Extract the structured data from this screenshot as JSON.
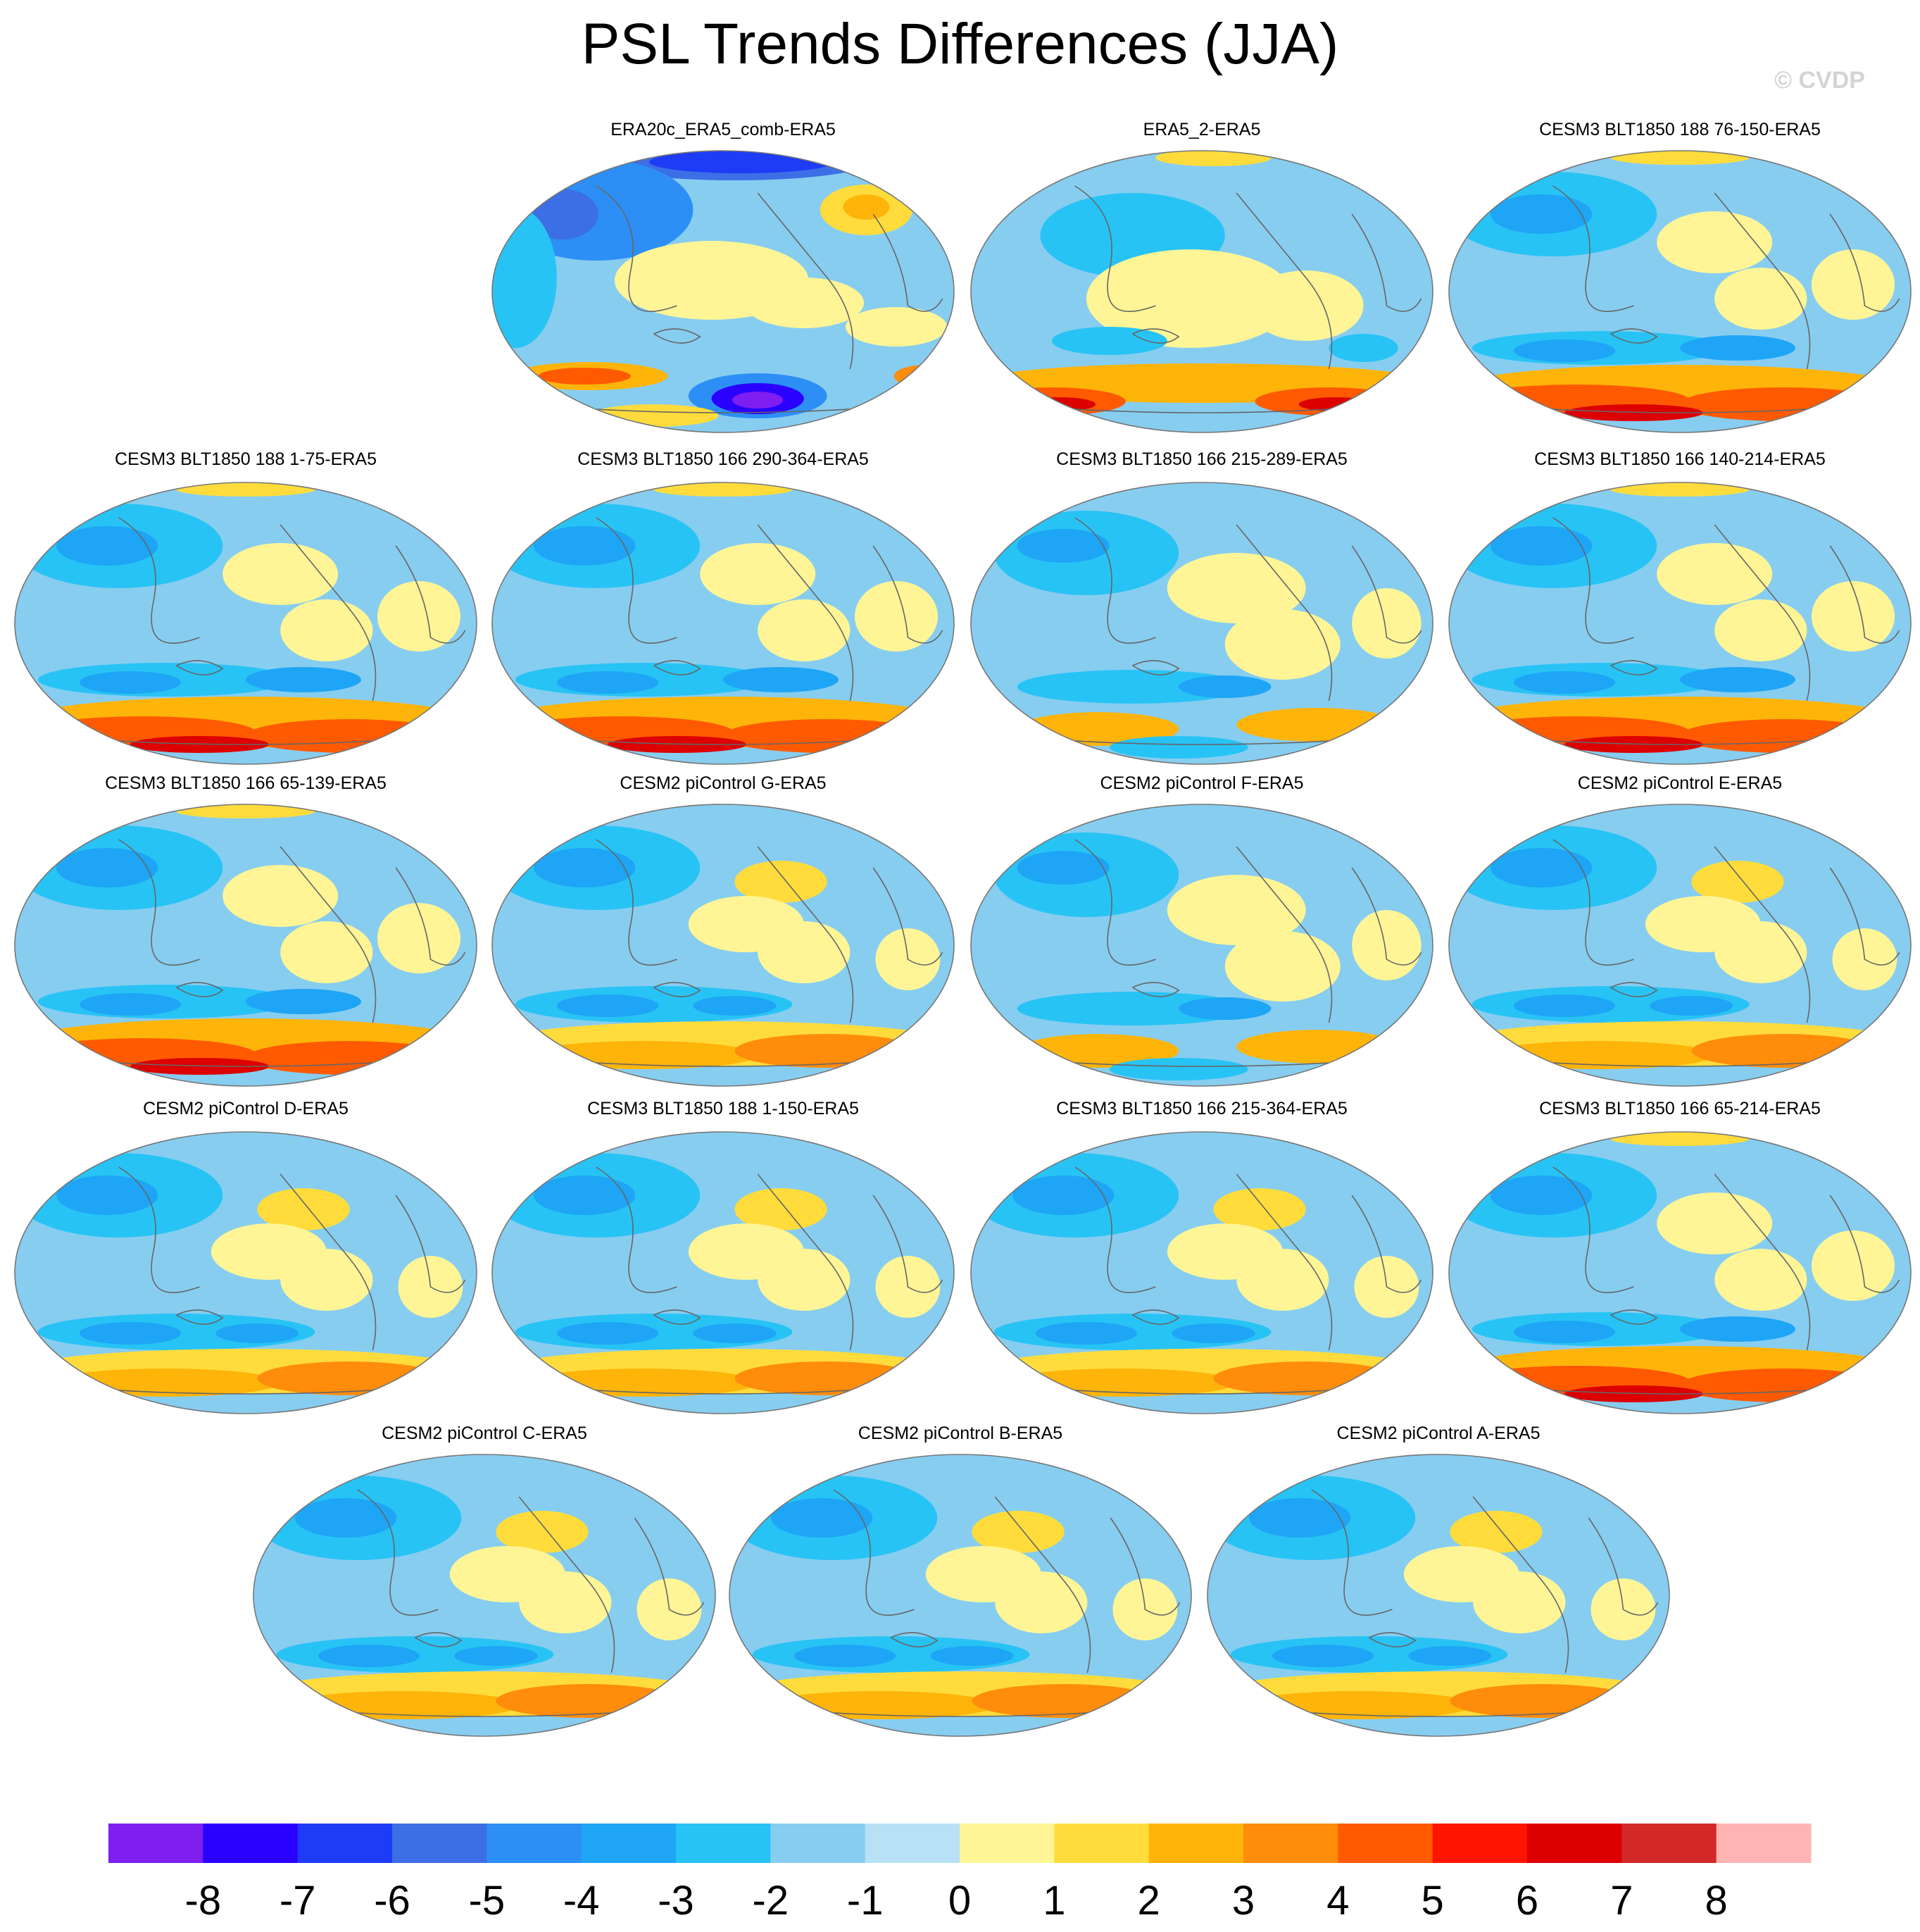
{
  "title": "PSL Trends Differences (JJA)",
  "watermark": "© CVDP",
  "panels": [
    {
      "title": "ERA20c_ERA5_comb-ERA5",
      "pattern": "era20c"
    },
    {
      "title": "ERA5_2-ERA5",
      "pattern": "era5_2"
    },
    {
      "title": "CESM3 BLT1850 188 76-150-ERA5",
      "pattern": "model_strong"
    },
    {
      "title": "CESM3 BLT1850 188 1-75-ERA5",
      "pattern": "model_strong"
    },
    {
      "title": "CESM3 BLT1850 166 290-364-ERA5",
      "pattern": "model_strong"
    },
    {
      "title": "CESM3 BLT1850 166 215-289-ERA5",
      "pattern": "model_weak"
    },
    {
      "title": "CESM3 BLT1850 166 140-214-ERA5",
      "pattern": "model_strong"
    },
    {
      "title": "CESM3 BLT1850 166 65-139-ERA5",
      "pattern": "model_strong"
    },
    {
      "title": "CESM2 piControl G-ERA5",
      "pattern": "model_mid"
    },
    {
      "title": "CESM2 piControl F-ERA5",
      "pattern": "model_weak"
    },
    {
      "title": "CESM2 piControl E-ERA5",
      "pattern": "model_mid"
    },
    {
      "title": "CESM2 piControl D-ERA5",
      "pattern": "model_mid"
    },
    {
      "title": "CESM3 BLT1850 188 1-150-ERA5",
      "pattern": "model_mid"
    },
    {
      "title": "CESM3 BLT1850 166 215-364-ERA5",
      "pattern": "model_mid"
    },
    {
      "title": "CESM3 BLT1850 166 65-214-ERA5",
      "pattern": "model_strong"
    },
    {
      "title": "CESM2 piControl C-ERA5",
      "pattern": "model_mid"
    },
    {
      "title": "CESM2 piControl B-ERA5",
      "pattern": "model_mid"
    },
    {
      "title": "CESM2 piControl A-ERA5",
      "pattern": "model_mid"
    }
  ],
  "colorbar": {
    "labels": [
      "-8",
      "-7",
      "-6",
      "-5",
      "-4",
      "-3",
      "-2",
      "-1",
      "0",
      "1",
      "2",
      "3",
      "4",
      "5",
      "6",
      "7",
      "8"
    ],
    "colors": [
      "#7e1ef0",
      "#2a00ff",
      "#1e3cf5",
      "#3c6ee6",
      "#2d8ff5",
      "#1ea5f5",
      "#28c3f5",
      "#87cdf0",
      "#b9e1f5",
      "#fff596",
      "#ffdc3c",
      "#ffb40a",
      "#ff8c0a",
      "#ff5a00",
      "#ff1400",
      "#dc0000",
      "#d22828",
      "#ffb4b4"
    ]
  }
}
